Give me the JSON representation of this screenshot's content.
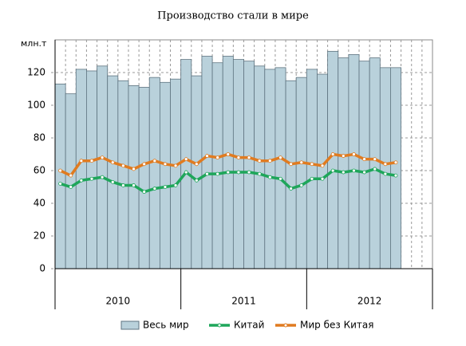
{
  "chart_data": {
    "type": "bar_line",
    "title": "Производство стали в мире",
    "ylabel": "млн.т",
    "categories": [
      null,
      null,
      null,
      null,
      null,
      null,
      null,
      null,
      null,
      null,
      null,
      null,
      null,
      null,
      null,
      null,
      null,
      null,
      null,
      null,
      null,
      null,
      null,
      null,
      null,
      null,
      null,
      null,
      null,
      null,
      null,
      null,
      null,
      null,
      null,
      null
    ],
    "groups": [
      {
        "label": "2010",
        "size": 12
      },
      {
        "label": "2011",
        "size": 12
      },
      {
        "label": "2012",
        "size": 12
      }
    ],
    "series": [
      {
        "name": "Весь мир",
        "kind": "bar",
        "color": "#b9d1db",
        "values": [
          113,
          107,
          122,
          121,
          124,
          118,
          115,
          112,
          111,
          117,
          114,
          116,
          128,
          118,
          130,
          126,
          130,
          128,
          127,
          124,
          122,
          123,
          115,
          117,
          122,
          119,
          133,
          129,
          131,
          127,
          129,
          123,
          123,
          null,
          null,
          null
        ]
      },
      {
        "name": "Китай",
        "kind": "line",
        "color": "#1ea65a",
        "values": [
          52,
          50,
          54,
          55,
          56,
          53,
          51,
          51,
          47,
          49,
          50,
          51,
          59,
          54,
          58,
          58,
          59,
          59,
          59,
          58,
          56,
          55,
          49,
          51,
          55,
          55,
          60,
          59,
          60,
          59,
          61,
          58,
          57,
          null,
          null,
          null
        ]
      },
      {
        "name": "Мир без Китая",
        "kind": "line",
        "color": "#e07b20",
        "values": [
          60,
          57,
          66,
          66,
          68,
          65,
          63,
          61,
          64,
          66,
          64,
          63,
          67,
          64,
          69,
          68,
          70,
          68,
          68,
          66,
          66,
          68,
          64,
          65,
          64,
          63,
          70,
          69,
          70,
          67,
          67,
          64,
          65,
          null,
          null,
          null
        ]
      }
    ],
    "ylim": [
      0,
      140
    ],
    "yticks": [
      0,
      20,
      40,
      60,
      80,
      100,
      120
    ],
    "grid": true
  }
}
